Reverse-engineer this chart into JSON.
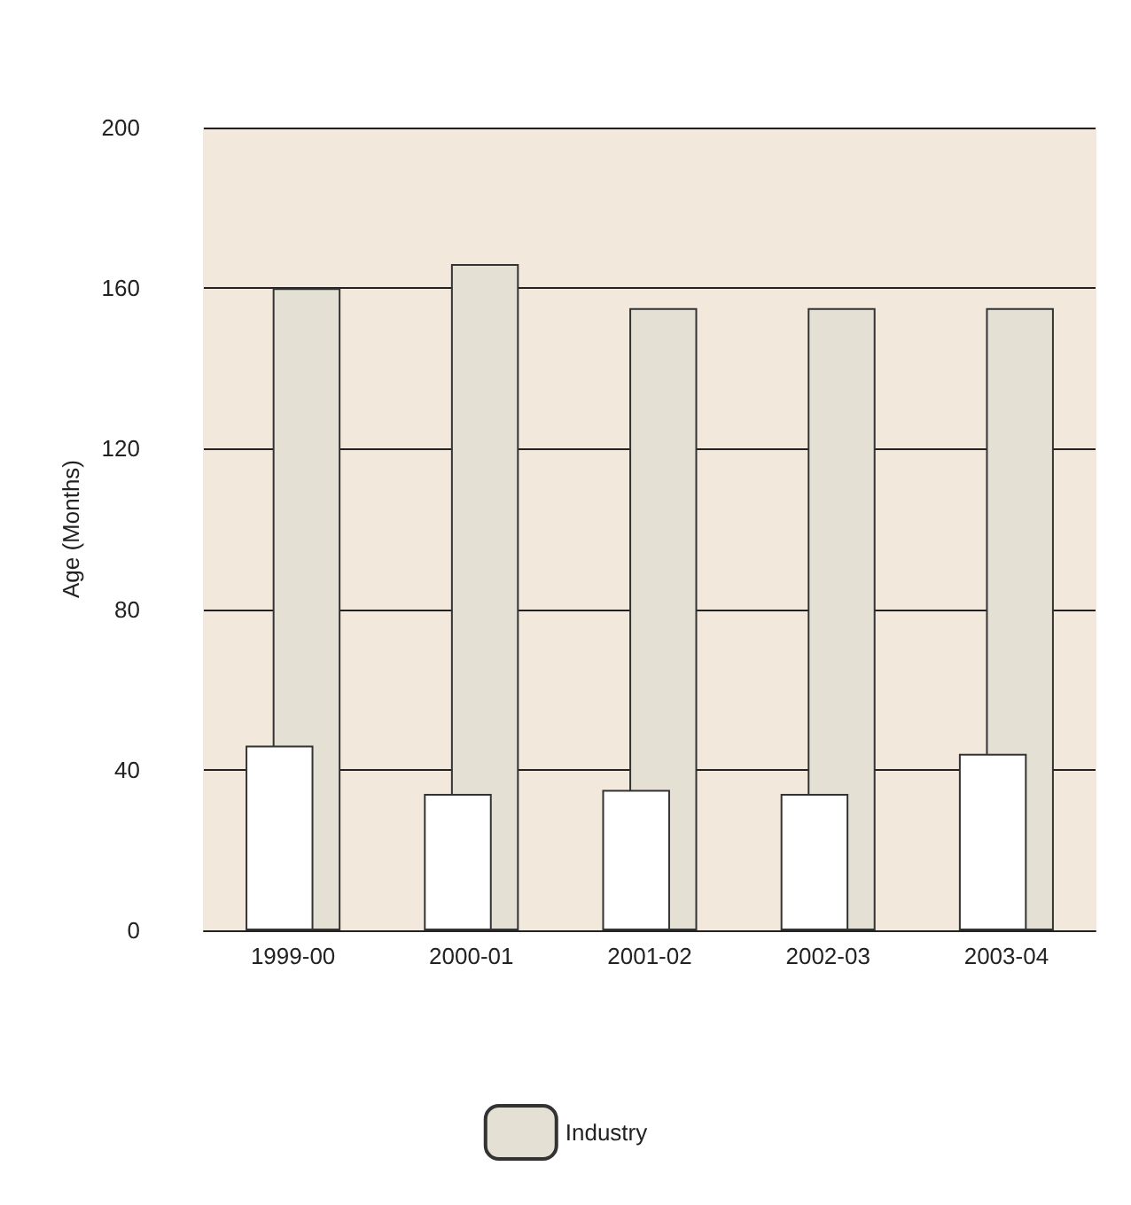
{
  "chart_data": {
    "type": "bar",
    "ylabel": "Age (Months)",
    "categories": [
      "1999-00",
      "2000-01",
      "2001-02",
      "2002-03",
      "2003-04"
    ],
    "series": [
      {
        "color": "#ffffff",
        "values": [
          46,
          34,
          35,
          34,
          44
        ]
      },
      {
        "name": "Industry",
        "color": "#e4e0d4",
        "values": [
          160,
          166,
          155,
          155,
          155
        ]
      }
    ],
    "ylim": [
      0,
      200
    ],
    "yticks": [
      0,
      40,
      80,
      120,
      160,
      200
    ],
    "grid": "y",
    "legend": "bottom"
  }
}
